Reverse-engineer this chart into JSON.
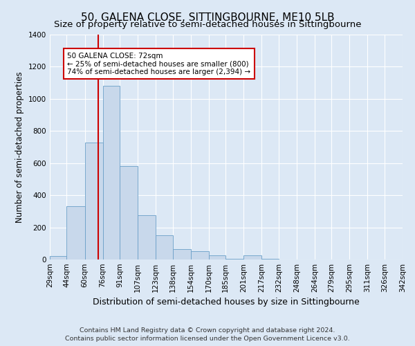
{
  "title": "50, GALENA CLOSE, SITTINGBOURNE, ME10 5LB",
  "subtitle": "Size of property relative to semi-detached houses in Sittingbourne",
  "xlabel": "Distribution of semi-detached houses by size in Sittingbourne",
  "ylabel": "Number of semi-detached properties",
  "footer1": "Contains HM Land Registry data © Crown copyright and database right 2024.",
  "footer2": "Contains public sector information licensed under the Open Government Licence v3.0.",
  "bins": [
    29,
    44,
    60,
    76,
    91,
    107,
    123,
    138,
    154,
    170,
    185,
    201,
    217,
    232,
    248,
    264,
    279,
    295,
    311,
    326,
    342
  ],
  "counts": [
    20,
    330,
    730,
    1080,
    580,
    275,
    150,
    65,
    50,
    25,
    5,
    25,
    5,
    0,
    0,
    0,
    0,
    0,
    0,
    0
  ],
  "bar_facecolor": "#c8d8eb",
  "bar_edgecolor": "#6a9fc8",
  "property_size": 72,
  "vline_color": "#cc0000",
  "annotation_line1": "50 GALENA CLOSE: 72sqm",
  "annotation_line2": "← 25% of semi-detached houses are smaller (800)",
  "annotation_line3": "74% of semi-detached houses are larger (2,394) →",
  "annotation_box_edgecolor": "#cc0000",
  "annotation_box_facecolor": "#ffffff",
  "ylim": [
    0,
    1400
  ],
  "yticks": [
    0,
    200,
    400,
    600,
    800,
    1000,
    1200,
    1400
  ],
  "background_color": "#dce8f5",
  "grid_color": "#ffffff",
  "title_fontsize": 11,
  "subtitle_fontsize": 9.5,
  "xlabel_fontsize": 9,
  "ylabel_fontsize": 8.5,
  "tick_fontsize": 7.5,
  "annotation_fontsize": 7.5,
  "footer_fontsize": 6.8
}
